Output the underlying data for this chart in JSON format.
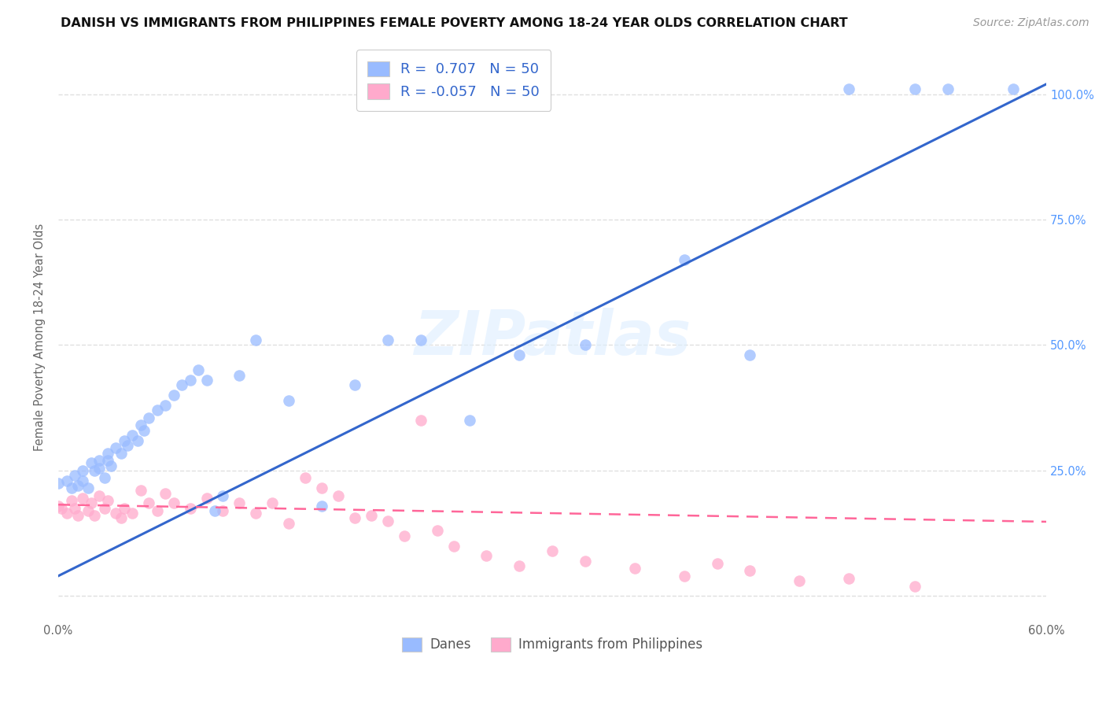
{
  "title": "DANISH VS IMMIGRANTS FROM PHILIPPINES FEMALE POVERTY AMONG 18-24 YEAR OLDS CORRELATION CHART",
  "source": "Source: ZipAtlas.com",
  "ylabel": "Female Poverty Among 18-24 Year Olds",
  "xlim": [
    0.0,
    0.6
  ],
  "ylim": [
    -0.05,
    1.08
  ],
  "watermark": "ZIPatlas",
  "legend": {
    "blue_r": "0.707",
    "blue_n": "50",
    "pink_r": "-0.057",
    "pink_n": "50"
  },
  "blue_color": "#99bbff",
  "pink_color": "#ffaacc",
  "blue_line_color": "#3366cc",
  "pink_line_color": "#ff6699",
  "blue_scatter": {
    "x": [
      0.0,
      0.005,
      0.008,
      0.01,
      0.012,
      0.015,
      0.015,
      0.018,
      0.02,
      0.022,
      0.025,
      0.025,
      0.028,
      0.03,
      0.03,
      0.032,
      0.035,
      0.038,
      0.04,
      0.042,
      0.045,
      0.048,
      0.05,
      0.052,
      0.055,
      0.06,
      0.065,
      0.07,
      0.075,
      0.08,
      0.085,
      0.09,
      0.095,
      0.1,
      0.11,
      0.12,
      0.14,
      0.16,
      0.18,
      0.2,
      0.22,
      0.25,
      0.28,
      0.32,
      0.38,
      0.42,
      0.48,
      0.52,
      0.54,
      0.58
    ],
    "y": [
      0.225,
      0.23,
      0.215,
      0.24,
      0.22,
      0.25,
      0.23,
      0.215,
      0.265,
      0.25,
      0.27,
      0.255,
      0.235,
      0.285,
      0.27,
      0.26,
      0.295,
      0.285,
      0.31,
      0.3,
      0.32,
      0.31,
      0.34,
      0.33,
      0.355,
      0.37,
      0.38,
      0.4,
      0.42,
      0.43,
      0.45,
      0.43,
      0.17,
      0.2,
      0.44,
      0.51,
      0.39,
      0.18,
      0.42,
      0.51,
      0.51,
      0.35,
      0.48,
      0.5,
      0.67,
      0.48,
      1.01,
      1.01,
      1.01,
      1.01
    ]
  },
  "pink_scatter": {
    "x": [
      0.0,
      0.002,
      0.005,
      0.008,
      0.01,
      0.012,
      0.015,
      0.018,
      0.02,
      0.022,
      0.025,
      0.028,
      0.03,
      0.035,
      0.038,
      0.04,
      0.045,
      0.05,
      0.055,
      0.06,
      0.065,
      0.07,
      0.08,
      0.09,
      0.1,
      0.11,
      0.12,
      0.13,
      0.14,
      0.15,
      0.16,
      0.17,
      0.18,
      0.19,
      0.2,
      0.21,
      0.22,
      0.23,
      0.24,
      0.26,
      0.28,
      0.3,
      0.32,
      0.35,
      0.38,
      0.4,
      0.42,
      0.45,
      0.48,
      0.52
    ],
    "y": [
      0.18,
      0.175,
      0.165,
      0.19,
      0.175,
      0.16,
      0.195,
      0.17,
      0.185,
      0.16,
      0.2,
      0.175,
      0.19,
      0.165,
      0.155,
      0.175,
      0.165,
      0.21,
      0.185,
      0.17,
      0.205,
      0.185,
      0.175,
      0.195,
      0.17,
      0.185,
      0.165,
      0.185,
      0.145,
      0.235,
      0.215,
      0.2,
      0.155,
      0.16,
      0.15,
      0.12,
      0.35,
      0.13,
      0.1,
      0.08,
      0.06,
      0.09,
      0.07,
      0.055,
      0.04,
      0.065,
      0.05,
      0.03,
      0.035,
      0.02
    ]
  },
  "blue_line_x": [
    0.0,
    0.6
  ],
  "blue_line_y": [
    0.04,
    1.02
  ],
  "pink_line_x": [
    0.0,
    0.6
  ],
  "pink_line_y": [
    0.182,
    0.148
  ],
  "background_color": "#ffffff",
  "grid_color": "#e0e0e0",
  "title_fontsize": 11.5,
  "source_fontsize": 10,
  "label_fontsize": 10.5,
  "tick_fontsize": 10.5
}
